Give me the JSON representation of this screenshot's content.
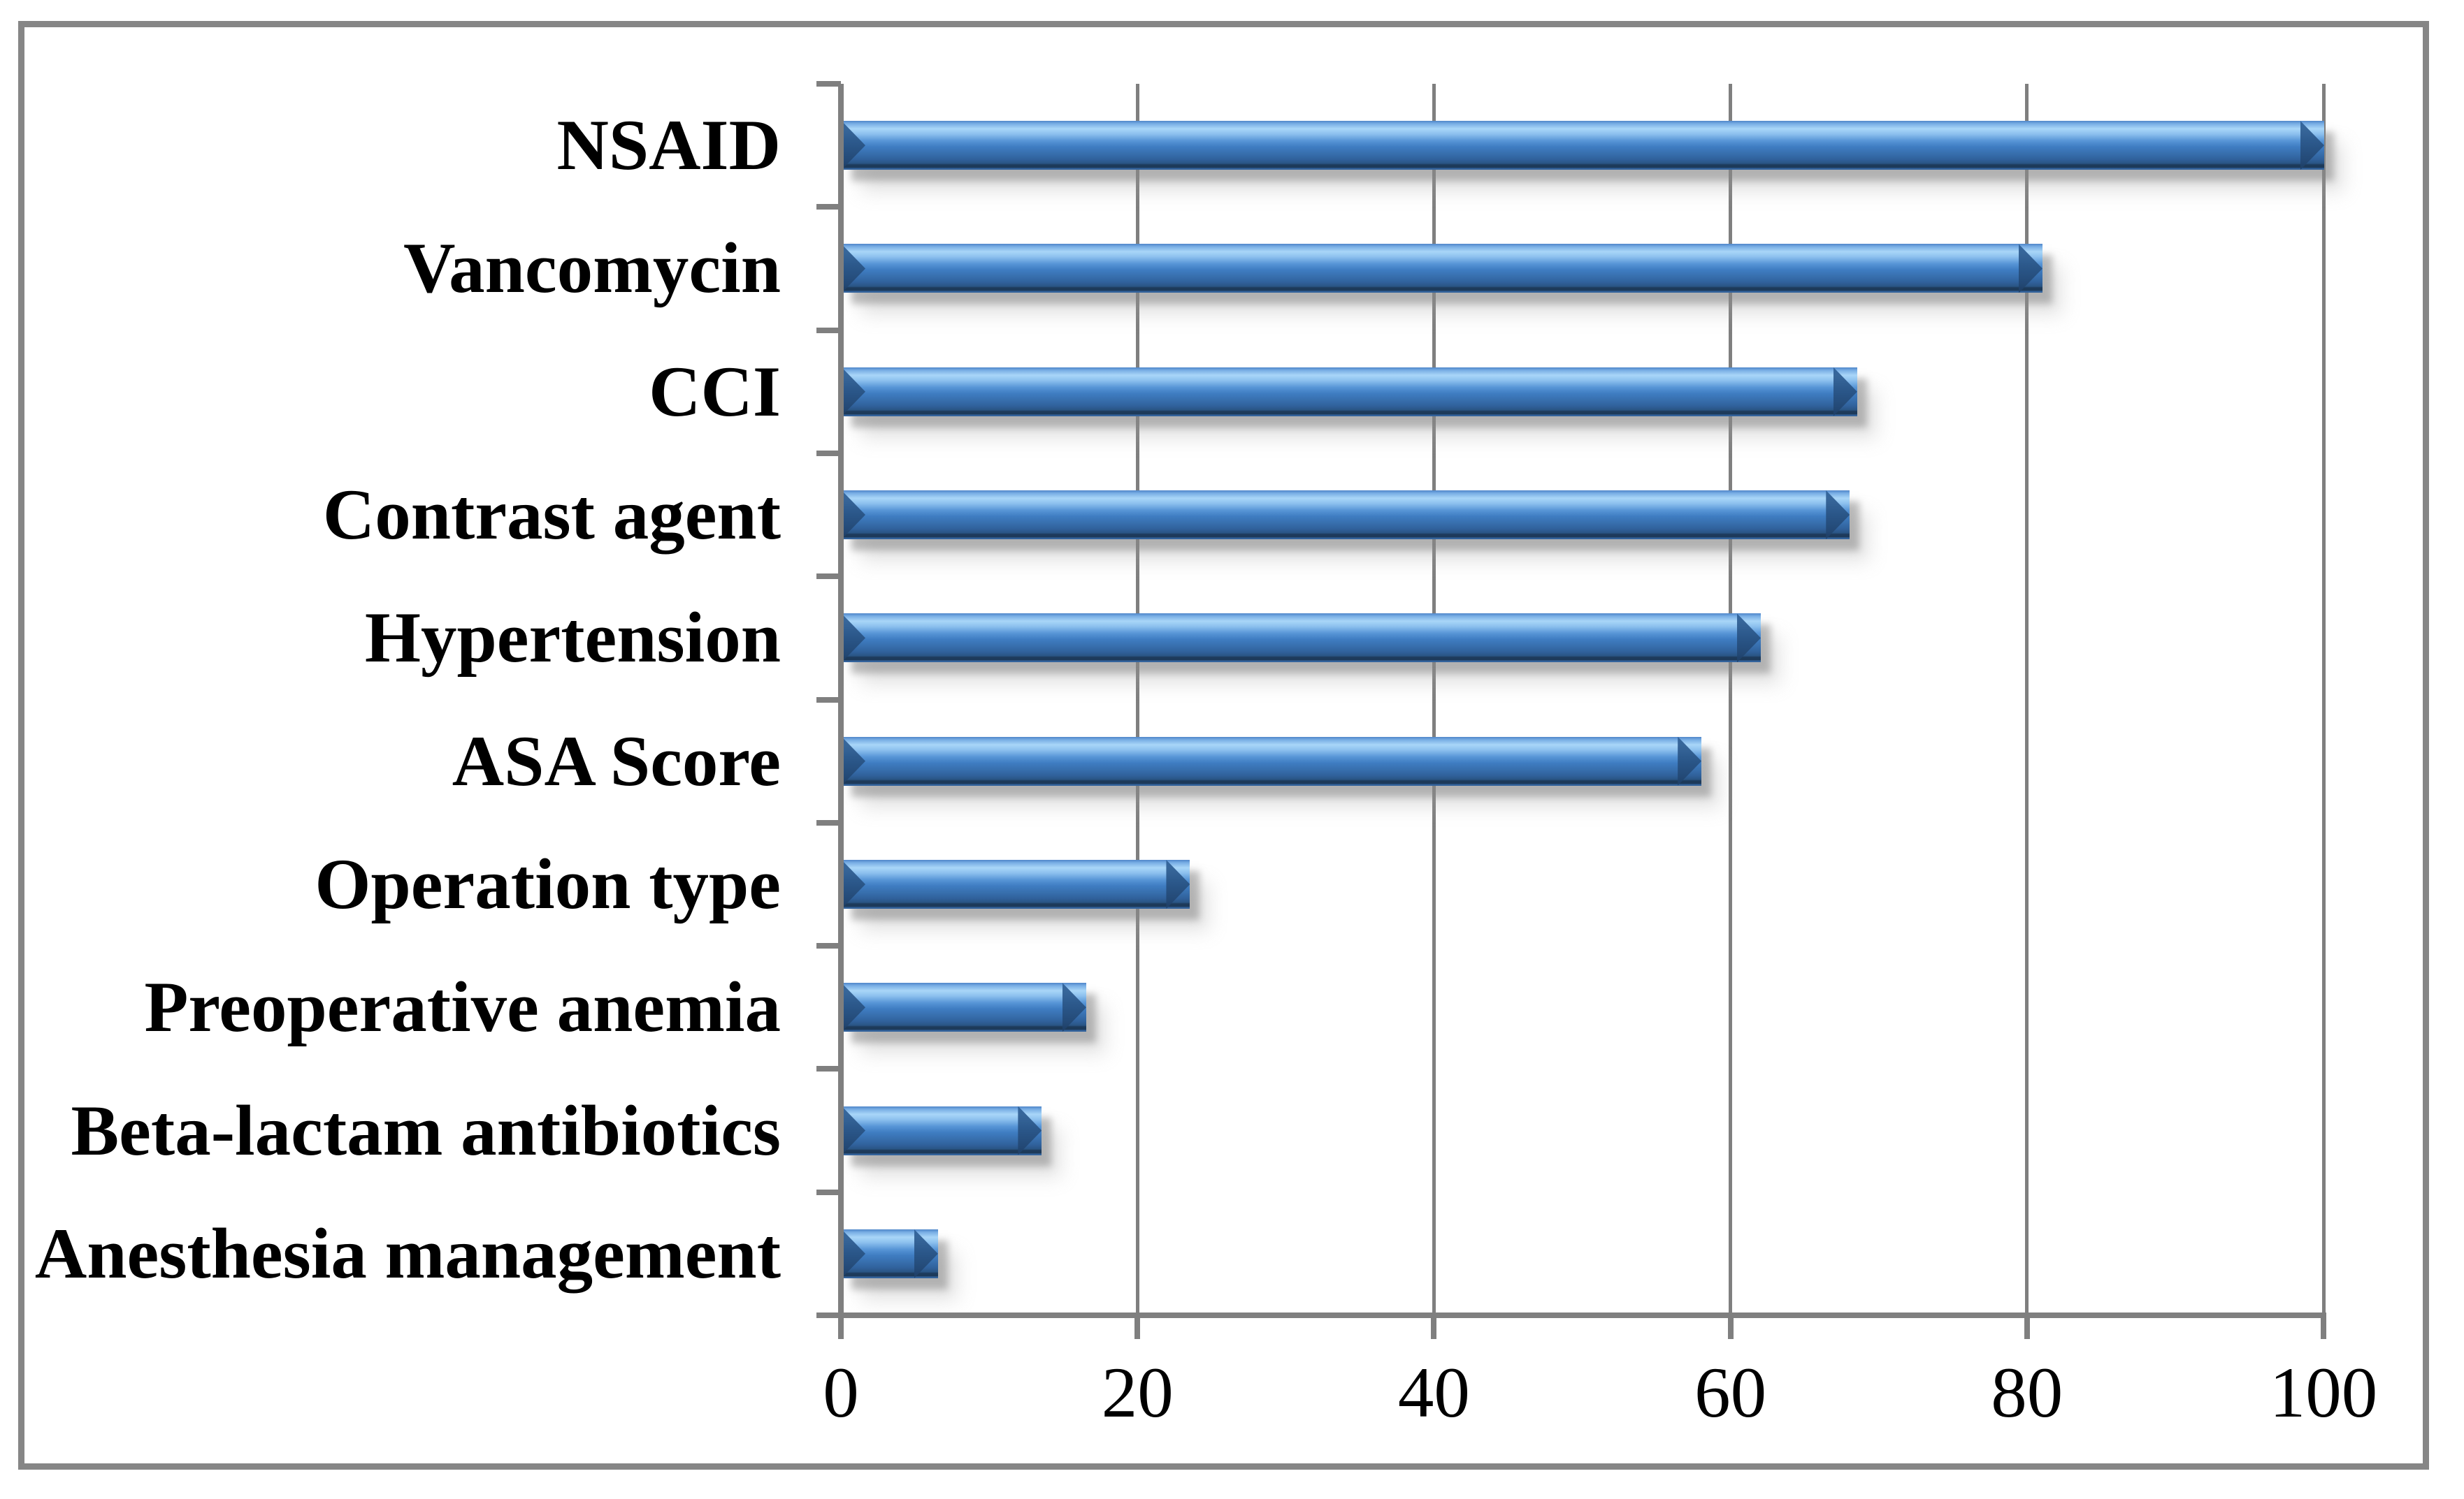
{
  "chart_data": {
    "type": "bar",
    "orientation": "horizontal",
    "title": "",
    "xlabel": "",
    "ylabel": "",
    "categories": [
      "NSAID",
      "Vancomycin",
      "CCI",
      "Contrast agent",
      "Hypertension",
      "ASA Score",
      "Operation type",
      "Preoperative anemia",
      "Beta-lactam antibiotics",
      "Anesthesia management"
    ],
    "values": [
      100,
      81,
      68.5,
      68,
      62,
      58,
      23.5,
      16.5,
      13.5,
      6.5
    ],
    "x_ticks": [
      0,
      20,
      40,
      60,
      80,
      100
    ],
    "xlim": [
      0,
      100
    ],
    "grid": true,
    "legend": false,
    "style": {
      "bar_color_mid": "#3f7dc2",
      "bar_color_highlight": "#a9d6f8",
      "bar_color_dark_edge": "#1d3a5a",
      "gridline_color": "#7f7f7f",
      "axis_color": "#7f7f7f",
      "frame_color": "#868686",
      "background_color": "#ffffff",
      "label_color": "#000000"
    }
  }
}
